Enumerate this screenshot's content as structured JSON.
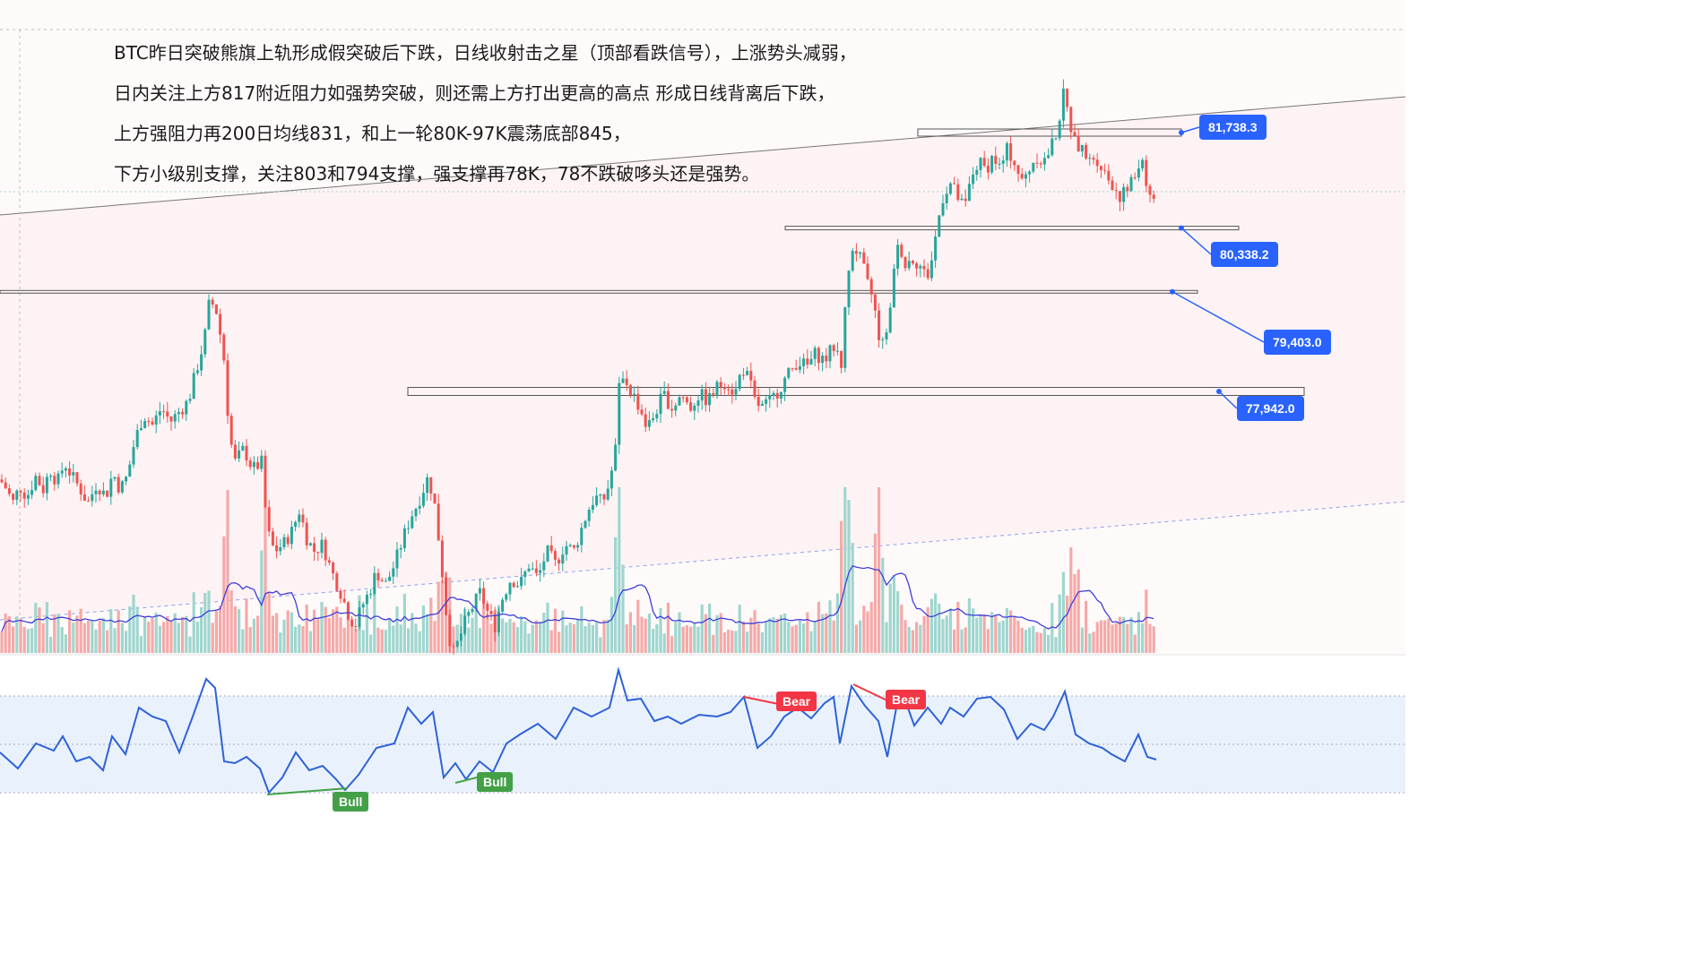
{
  "notes": [
    "BTC昨日突破熊旗上轨形成假突破后下跌，日线收射击之星（顶部看跌信号），上涨势头减弱，",
    "日内关注上方817附近阻力如强势突破，则还需上方打出更高的高点  形成日线背离后下跌，",
    "上方强阻力再200日均线831，和上一轮80K-97K震荡底部845，",
    "下方小级别支撑，关注803和794支撑，强支撑再78K，78不跌破哆头还是强势。"
  ],
  "colors": {
    "up": "#26a69a",
    "down": "#ef5350",
    "volume_up": "#9fd6cf",
    "volume_down": "#f5a9a8",
    "ma_line": "#3f3fd9",
    "rsi_line": "#2f62d8",
    "tag": "#2962ff",
    "bear": "#f23645",
    "bull": "#43a047"
  },
  "chart_data": [
    {
      "type": "candlestick",
      "symbol": "BTC",
      "levels": [
        {
          "label": "81,738.3",
          "value": 81738.3
        },
        {
          "label": "80,338.2",
          "value": 80338.2
        },
        {
          "label": "79,403.0",
          "value": 79403.0
        },
        {
          "label": "77,942.0",
          "value": 77942.0
        }
      ],
      "y_range": [
        73900,
        82600
      ],
      "close_path": [
        [
          0,
          76650
        ],
        [
          8,
          76500
        ],
        [
          14,
          76300
        ],
        [
          22,
          76550
        ],
        [
          30,
          76400
        ],
        [
          40,
          76700
        ],
        [
          48,
          76500
        ],
        [
          56,
          76800
        ],
        [
          64,
          76600
        ],
        [
          72,
          76900
        ],
        [
          80,
          76700
        ],
        [
          90,
          76500
        ],
        [
          98,
          76300
        ],
        [
          108,
          76600
        ],
        [
          118,
          76400
        ],
        [
          126,
          76750
        ],
        [
          134,
          76500
        ],
        [
          142,
          76700
        ],
        [
          150,
          77200
        ],
        [
          160,
          77600
        ],
        [
          170,
          77450
        ],
        [
          180,
          77700
        ],
        [
          190,
          77500
        ],
        [
          200,
          77650
        ],
        [
          210,
          77800
        ],
        [
          220,
          78300
        ],
        [
          228,
          78700
        ],
        [
          234,
          79300
        ],
        [
          242,
          79100
        ],
        [
          250,
          78400
        ],
        [
          256,
          77300
        ],
        [
          262,
          76900
        ],
        [
          272,
          77100
        ],
        [
          282,
          76800
        ],
        [
          292,
          76900
        ],
        [
          298,
          75900
        ],
        [
          306,
          75600
        ],
        [
          316,
          75700
        ],
        [
          326,
          75900
        ],
        [
          334,
          76200
        ],
        [
          342,
          75800
        ],
        [
          350,
          75600
        ],
        [
          360,
          75700
        ],
        [
          370,
          75300
        ],
        [
          380,
          75000
        ],
        [
          388,
          74700
        ],
        [
          396,
          74500
        ],
        [
          404,
          74800
        ],
        [
          412,
          75000
        ],
        [
          420,
          75300
        ],
        [
          430,
          75100
        ],
        [
          440,
          75400
        ],
        [
          450,
          75800
        ],
        [
          458,
          76100
        ],
        [
          466,
          76300
        ],
        [
          472,
          76500
        ],
        [
          478,
          76700
        ],
        [
          486,
          76200
        ],
        [
          494,
          75200
        ],
        [
          500,
          74400
        ],
        [
          506,
          74100
        ],
        [
          512,
          74300
        ],
        [
          520,
          74600
        ],
        [
          528,
          74800
        ],
        [
          536,
          75000
        ],
        [
          544,
          74700
        ],
        [
          552,
          74500
        ],
        [
          560,
          74900
        ],
        [
          570,
          75200
        ],
        [
          580,
          75100
        ],
        [
          590,
          75400
        ],
        [
          600,
          75200
        ],
        [
          610,
          75600
        ],
        [
          620,
          75400
        ],
        [
          630,
          75700
        ],
        [
          640,
          75600
        ],
        [
          648,
          75900
        ],
        [
          656,
          76200
        ],
        [
          664,
          76400
        ],
        [
          672,
          76300
        ],
        [
          680,
          76600
        ],
        [
          688,
          77200
        ],
        [
          692,
          78300
        ],
        [
          698,
          78100
        ],
        [
          706,
          77900
        ],
        [
          714,
          77700
        ],
        [
          722,
          77400
        ],
        [
          730,
          77600
        ],
        [
          740,
          77900
        ],
        [
          750,
          77700
        ],
        [
          760,
          77900
        ],
        [
          770,
          77700
        ],
        [
          780,
          77900
        ],
        [
          790,
          77800
        ],
        [
          800,
          78000
        ],
        [
          810,
          78100
        ],
        [
          820,
          77900
        ],
        [
          828,
          78300
        ],
        [
          836,
          78100
        ],
        [
          842,
          77800
        ],
        [
          850,
          77700
        ],
        [
          860,
          77800
        ],
        [
          870,
          78000
        ],
        [
          880,
          78200
        ],
        [
          890,
          78400
        ],
        [
          900,
          78300
        ],
        [
          910,
          78500
        ],
        [
          920,
          78400
        ],
        [
          930,
          78600
        ],
        [
          936,
          78500
        ],
        [
          940,
          78200
        ],
        [
          944,
          79500
        ],
        [
          950,
          80100
        ],
        [
          956,
          80000
        ],
        [
          962,
          79800
        ],
        [
          968,
          79500
        ],
        [
          974,
          79300
        ],
        [
          980,
          78800
        ],
        [
          986,
          78600
        ],
        [
          992,
          78900
        ],
        [
          998,
          79900
        ],
        [
          1004,
          80100
        ],
        [
          1010,
          79800
        ],
        [
          1018,
          79900
        ],
        [
          1026,
          79800
        ],
        [
          1034,
          79600
        ],
        [
          1040,
          79900
        ],
        [
          1046,
          80400
        ],
        [
          1052,
          80800
        ],
        [
          1060,
          81000
        ],
        [
          1068,
          80800
        ],
        [
          1076,
          80600
        ],
        [
          1084,
          81100
        ],
        [
          1092,
          81300
        ],
        [
          1100,
          81200
        ],
        [
          1108,
          81400
        ],
        [
          1116,
          81200
        ],
        [
          1124,
          81500
        ],
        [
          1132,
          81300
        ],
        [
          1140,
          81000
        ],
        [
          1148,
          81200
        ],
        [
          1156,
          81400
        ],
        [
          1164,
          81300
        ],
        [
          1172,
          81500
        ],
        [
          1180,
          81800
        ],
        [
          1186,
          82300
        ],
        [
          1192,
          82000
        ],
        [
          1198,
          81600
        ],
        [
          1206,
          81500
        ],
        [
          1214,
          81300
        ],
        [
          1222,
          81400
        ],
        [
          1230,
          81200
        ],
        [
          1240,
          81000
        ],
        [
          1250,
          80800
        ],
        [
          1258,
          80900
        ],
        [
          1266,
          81100
        ],
        [
          1274,
          81400
        ],
        [
          1282,
          80800
        ],
        [
          1290,
          80800
        ]
      ]
    },
    {
      "type": "line",
      "indicator": "RSI",
      "annotations": [
        {
          "label": "Bear",
          "x": 888
        },
        {
          "label": "Bear",
          "x": 1010
        },
        {
          "label": "Bull",
          "x": 390
        },
        {
          "label": "Bull",
          "x": 552
        }
      ]
    }
  ]
}
